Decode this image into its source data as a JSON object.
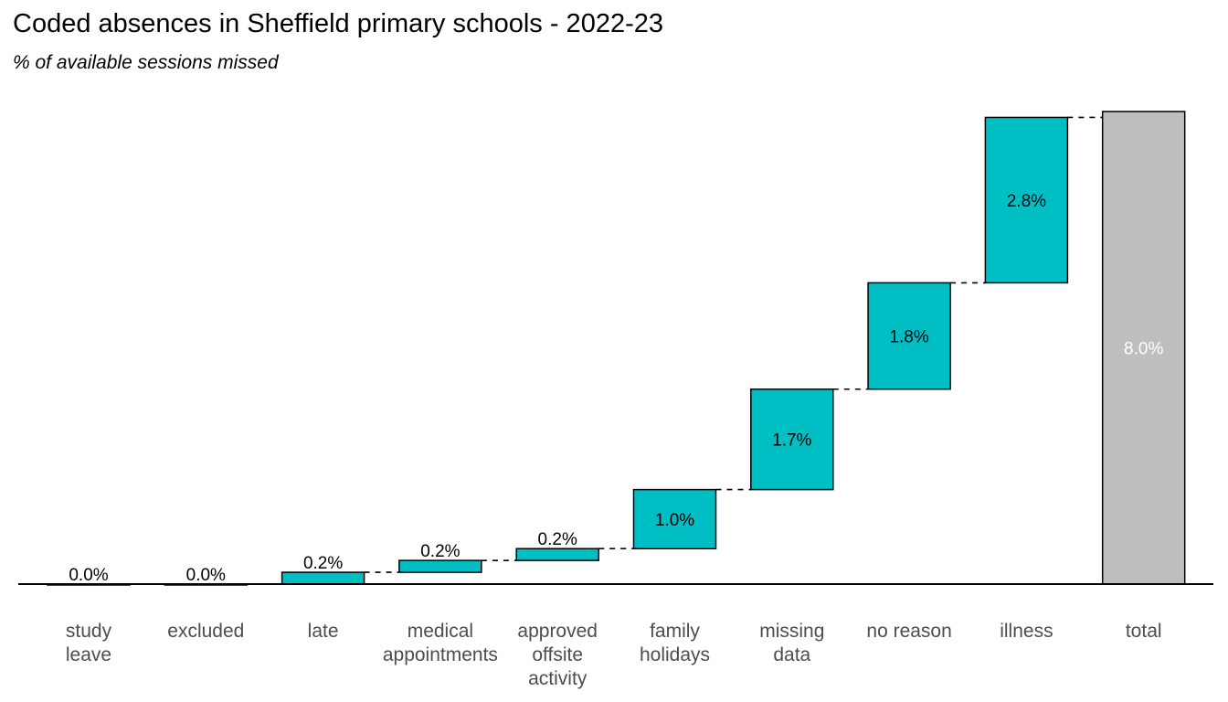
{
  "chart_data": {
    "type": "bar",
    "title": "Coded absences in Sheffield primary schools - 2022-23",
    "subtitle": "% of available sessions missed",
    "xlabel": "",
    "ylabel": "",
    "ylim": [
      0,
      8.0
    ],
    "grid": false,
    "legend": "none",
    "categories": [
      [
        "study",
        "leave"
      ],
      [
        "excluded"
      ],
      [
        "late"
      ],
      [
        "medical",
        "appointments"
      ],
      [
        "approved",
        "offsite",
        "activity"
      ],
      [
        "family",
        "holidays"
      ],
      [
        "missing",
        "data"
      ],
      [
        "no reason"
      ],
      [
        "illness"
      ],
      [
        "total"
      ]
    ],
    "values": [
      0.0,
      0.0,
      0.2,
      0.2,
      0.2,
      1.0,
      1.7,
      1.8,
      2.8,
      8.0
    ],
    "bar_labels": [
      "0.0%",
      "0.0%",
      "0.2%",
      "0.2%",
      "0.2%",
      "1.0%",
      "1.7%",
      "1.8%",
      "2.8%",
      "8.0%"
    ],
    "colors": {
      "step": "#00bfc4",
      "total": "#bebebe",
      "outline": "#000000",
      "label_dark": "#000000",
      "label_light": "#ffffff",
      "axis_text": "#4d4d4d"
    }
  }
}
